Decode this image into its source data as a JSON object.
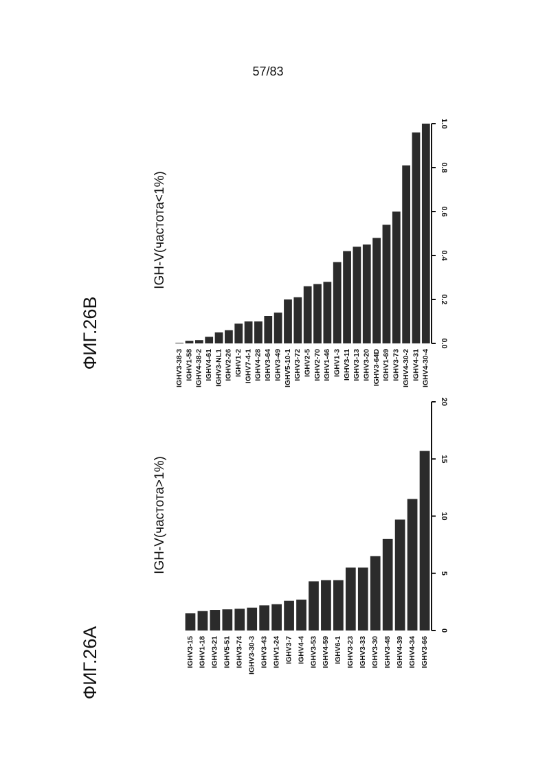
{
  "page_number": "57/83",
  "chart_data": [
    {
      "type": "bar",
      "figure_label": "ФИГ.26А",
      "title": "IGH-V(частота>1%)",
      "categories": [
        "IGHV3-15",
        "IGHV1-18",
        "IGHV3-21",
        "IGHV5-51",
        "IGHV3-74",
        "IGHV3-30-3",
        "IGHV3-43",
        "IGHV1-24",
        "IGHV3-7",
        "IGHV4-4",
        "IGHV3-53",
        "IGHV4-59",
        "IGHV6-1",
        "IGHV3-23",
        "IGHV3-33",
        "IGHV3-30",
        "IGHV3-48",
        "IGHV4-39",
        "IGHV4-34",
        "IGHV3-66"
      ],
      "values": [
        1.5,
        1.7,
        1.8,
        1.85,
        1.9,
        2.0,
        2.2,
        2.3,
        2.6,
        2.7,
        4.3,
        4.4,
        4.4,
        5.5,
        5.5,
        6.5,
        8.0,
        9.7,
        11.5,
        15.7
      ],
      "color": "#2b2b2b",
      "ylim": [
        0,
        20
      ],
      "yticks": [
        0,
        5,
        10,
        15,
        20
      ]
    },
    {
      "type": "bar",
      "figure_label": "ФИГ.26В",
      "title": "IGH-V(частота<1%)",
      "categories": [
        "IGHV3-38-3",
        "IGHV1-58",
        "IGHV4-38-2",
        "IGHV4-61",
        "IGHV3-NL1",
        "IGHV2-26",
        "IGHV1-2",
        "IGHV7-4-1",
        "IGHV4-28",
        "IGHV3-64",
        "IGHV3-49",
        "IGHV5-10-1",
        "IGHV3-72",
        "IGHV2-5",
        "IGHV2-70",
        "IGHV1-46",
        "IGHV1-3",
        "IGHV3-11",
        "IGHV3-13",
        "IGHV3-20",
        "IGHV3-64D",
        "IGHV1-69",
        "IGHV3-73",
        "IGHV4-30-2",
        "IGHV4-31",
        "IGHV4-30-4"
      ],
      "values": [
        0.003,
        0.012,
        0.015,
        0.03,
        0.05,
        0.06,
        0.09,
        0.1,
        0.1,
        0.125,
        0.14,
        0.2,
        0.21,
        0.26,
        0.27,
        0.28,
        0.37,
        0.42,
        0.44,
        0.45,
        0.48,
        0.54,
        0.6,
        0.81,
        0.96,
        1.0
      ],
      "color": "#2b2b2b",
      "ylim": [
        0,
        1
      ],
      "yticks": [
        {
          "value": 0,
          "label": "0.0"
        },
        0.2,
        0.4,
        0.6,
        0.8,
        {
          "value": 1,
          "label": "1.0"
        }
      ]
    }
  ]
}
